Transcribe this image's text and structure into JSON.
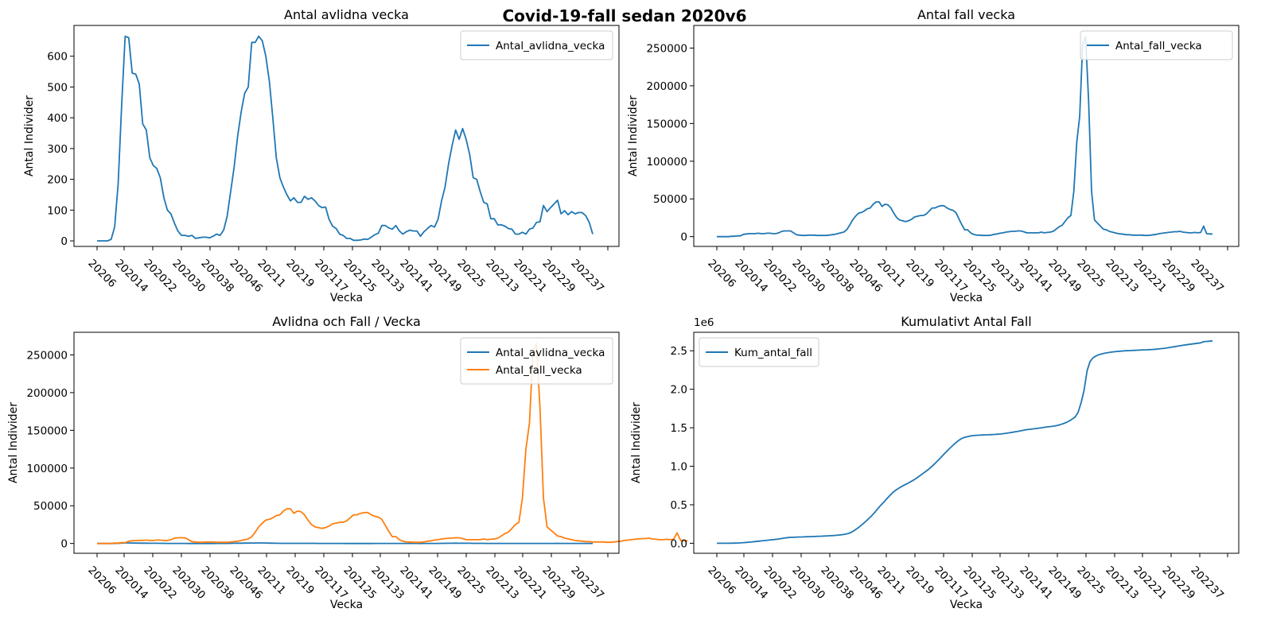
{
  "figure": {
    "suptitle": "Covid-19-fall sedan 2020v6"
  },
  "colors": {
    "series1": "#1f77b4",
    "series2": "#ff7f0e"
  },
  "chart_data": [
    {
      "type": "line",
      "title": "Antal avlidna vecka",
      "xlabel": "Vecka",
      "ylabel": "Antal Individer",
      "x_ticks": [
        "20206",
        "202014",
        "202022",
        "202030",
        "202038",
        "202046",
        "20211",
        "20219",
        "202117",
        "202125",
        "202133",
        "202141",
        "202149",
        "20225",
        "202213",
        "202221",
        "202229",
        "202237"
      ],
      "y_ticks": [
        "0",
        "100",
        "200",
        "300",
        "400",
        "500",
        "600"
      ],
      "y_tick_values": [
        0,
        100,
        200,
        300,
        400,
        500,
        600
      ],
      "ylim": [
        -18,
        700
      ],
      "legend": "top-right",
      "offset_text": "",
      "series": [
        {
          "name": "Antal_avlidna_vecka",
          "color": "#1f77b4",
          "values": [
            0,
            0,
            0,
            0,
            5,
            45,
            185,
            440,
            665,
            660,
            545,
            542,
            510,
            380,
            360,
            270,
            245,
            235,
            205,
            140,
            100,
            88,
            58,
            32,
            18,
            18,
            15,
            18,
            8,
            10,
            12,
            12,
            10,
            15,
            22,
            18,
            35,
            80,
            160,
            240,
            340,
            420,
            480,
            500,
            645,
            645,
            665,
            650,
            600,
            520,
            400,
            270,
            205,
            175,
            150,
            130,
            140,
            125,
            125,
            145,
            135,
            140,
            130,
            115,
            108,
            110,
            70,
            48,
            40,
            22,
            18,
            8,
            8,
            2,
            2,
            3,
            6,
            5,
            12,
            20,
            25,
            50,
            50,
            42,
            38,
            50,
            32,
            22,
            30,
            35,
            32,
            32,
            15,
            30,
            40,
            50,
            45,
            70,
            130,
            175,
            250,
            310,
            360,
            330,
            365,
            330,
            280,
            205,
            200,
            160,
            125,
            120,
            72,
            72,
            52,
            52,
            48,
            40,
            38,
            22,
            22,
            28,
            22,
            38,
            42,
            60,
            62,
            115,
            95,
            108,
            120,
            132,
            88,
            98,
            85,
            95,
            88,
            92,
            92,
            82,
            60,
            22
          ]
        }
      ]
    },
    {
      "type": "line",
      "title": "Antal fall vecka",
      "xlabel": "Vecka",
      "ylabel": "Antal Individer",
      "x_ticks": [
        "20206",
        "202014",
        "202022",
        "202030",
        "202038",
        "202046",
        "20211",
        "20219",
        "202117",
        "202125",
        "202133",
        "202141",
        "202149",
        "20225",
        "202213",
        "202221",
        "202229",
        "202237"
      ],
      "y_ticks": [
        "0",
        "50000",
        "100000",
        "150000",
        "200000",
        "250000"
      ],
      "y_tick_values": [
        0,
        50000,
        100000,
        150000,
        200000,
        250000
      ],
      "ylim": [
        -13000,
        280000
      ],
      "legend": "top-right",
      "offset_text": "",
      "series": [
        {
          "name": "Antal_fall_vecka",
          "color": "#1f77b4",
          "values": [
            0,
            0,
            0,
            0,
            0,
            500,
            500,
            1000,
            1000,
            3000,
            3500,
            4000,
            4000,
            4000,
            4500,
            4000,
            4000,
            4500,
            4500,
            4000,
            4000,
            5000,
            7000,
            7500,
            7500,
            7500,
            5000,
            2500,
            2000,
            1500,
            1500,
            2000,
            2000,
            2000,
            1500,
            1500,
            1500,
            1500,
            2000,
            2500,
            3000,
            4000,
            5000,
            6000,
            9000,
            15000,
            22000,
            27000,
            31000,
            32000,
            34000,
            37000,
            38000,
            43000,
            46000,
            46000,
            40000,
            43000,
            42000,
            38000,
            31000,
            25000,
            22000,
            21000,
            20000,
            21000,
            23000,
            26000,
            27000,
            28000,
            28000,
            30000,
            34000,
            38000,
            38000,
            40000,
            41000,
            41000,
            38000,
            36000,
            35000,
            32000,
            24000,
            16000,
            9000,
            9000,
            5000,
            3000,
            2000,
            2000,
            1500,
            1500,
            1500,
            2000,
            3000,
            3500,
            4500,
            5000,
            6000,
            6500,
            7000,
            7000,
            7500,
            7500,
            6500,
            5000,
            5000,
            5000,
            5000,
            5000,
            6000,
            5000,
            5500,
            6000,
            7000,
            10000,
            13000,
            15000,
            20000,
            25000,
            28000,
            60000,
            125000,
            160000,
            255000,
            265000,
            180000,
            60000,
            22000,
            18000,
            14000,
            10000,
            9000,
            7000,
            6000,
            5000,
            4000,
            3500,
            3000,
            2500,
            2500,
            2000,
            2000,
            2000,
            2000,
            1500,
            1500,
            2000,
            2500,
            3000,
            4000,
            4500,
            5000,
            5500,
            6000,
            6500,
            6500,
            7000,
            6000,
            5500,
            5000,
            5000,
            5500,
            5000,
            5500,
            14000,
            4000,
            3500,
            3500
          ]
        }
      ]
    },
    {
      "type": "line",
      "title": "Avlidna och Fall / Vecka",
      "xlabel": "Vecka",
      "ylabel": "Antal Individer",
      "x_ticks": [
        "20206",
        "202014",
        "202022",
        "202030",
        "202038",
        "202046",
        "20211",
        "20219",
        "202117",
        "202125",
        "202133",
        "202141",
        "202149",
        "20225",
        "202213",
        "202221",
        "202229",
        "202237"
      ],
      "y_ticks": [
        "0",
        "50000",
        "100000",
        "150000",
        "200000",
        "250000"
      ],
      "y_tick_values": [
        0,
        50000,
        100000,
        150000,
        200000,
        250000
      ],
      "ylim": [
        -13000,
        280000
      ],
      "legend": "top-right",
      "offset_text": "",
      "series": [
        {
          "name": "Antal_avlidna_vecka",
          "color": "#1f77b4",
          "values": [
            0,
            0,
            0,
            0,
            5,
            45,
            185,
            440,
            665,
            660,
            545,
            542,
            510,
            380,
            360,
            270,
            245,
            235,
            205,
            140,
            100,
            88,
            58,
            32,
            18,
            18,
            15,
            18,
            8,
            10,
            12,
            12,
            10,
            15,
            22,
            18,
            35,
            80,
            160,
            240,
            340,
            420,
            480,
            500,
            645,
            645,
            665,
            650,
            600,
            520,
            400,
            270,
            205,
            175,
            150,
            130,
            140,
            125,
            125,
            145,
            135,
            140,
            130,
            115,
            108,
            110,
            70,
            48,
            40,
            22,
            18,
            8,
            8,
            2,
            2,
            3,
            6,
            5,
            12,
            20,
            25,
            50,
            50,
            42,
            38,
            50,
            32,
            22,
            30,
            35,
            32,
            32,
            15,
            30,
            40,
            50,
            45,
            70,
            130,
            175,
            250,
            310,
            360,
            330,
            365,
            330,
            280,
            205,
            200,
            160,
            125,
            120,
            72,
            72,
            52,
            52,
            48,
            40,
            38,
            22,
            22,
            28,
            22,
            38,
            42,
            60,
            62,
            115,
            95,
            108,
            120,
            132,
            88,
            98,
            85,
            95,
            88,
            92,
            92,
            82,
            60,
            22
          ]
        },
        {
          "name": "Antal_fall_vecka",
          "color": "#ff7f0e",
          "values": [
            0,
            0,
            0,
            0,
            0,
            500,
            500,
            1000,
            1000,
            3000,
            3500,
            4000,
            4000,
            4000,
            4500,
            4000,
            4000,
            4500,
            4500,
            4000,
            4000,
            5000,
            7000,
            7500,
            7500,
            7500,
            5000,
            2500,
            2000,
            1500,
            1500,
            2000,
            2000,
            2000,
            1500,
            1500,
            1500,
            1500,
            2000,
            2500,
            3000,
            4000,
            5000,
            6000,
            9000,
            15000,
            22000,
            27000,
            31000,
            32000,
            34000,
            37000,
            38000,
            43000,
            46000,
            46000,
            40000,
            43000,
            42000,
            38000,
            31000,
            25000,
            22000,
            21000,
            20000,
            21000,
            23000,
            26000,
            27000,
            28000,
            28000,
            30000,
            34000,
            38000,
            38000,
            40000,
            41000,
            41000,
            38000,
            36000,
            35000,
            32000,
            24000,
            16000,
            9000,
            9000,
            5000,
            3000,
            2000,
            2000,
            1500,
            1500,
            1500,
            2000,
            3000,
            3500,
            4500,
            5000,
            6000,
            6500,
            7000,
            7000,
            7500,
            7500,
            6500,
            5000,
            5000,
            5000,
            5000,
            5000,
            6000,
            5000,
            5500,
            6000,
            7000,
            10000,
            13000,
            15000,
            20000,
            25000,
            28000,
            60000,
            125000,
            160000,
            255000,
            265000,
            180000,
            60000,
            22000,
            18000,
            14000,
            10000,
            9000,
            7000,
            6000,
            5000,
            4000,
            3500,
            3000,
            2500,
            2500,
            2000,
            2000,
            2000,
            2000,
            1500,
            1500,
            2000,
            2500,
            3000,
            4000,
            4500,
            5000,
            5500,
            6000,
            6500,
            6500,
            7000,
            6000,
            5500,
            5000,
            5000,
            5500,
            5000,
            5500,
            14000,
            4000,
            3500,
            3500
          ]
        }
      ]
    },
    {
      "type": "line",
      "title": "Kumulativt Antal Fall",
      "xlabel": "Vecka",
      "ylabel": "Antal Individer",
      "x_ticks": [
        "20206",
        "202014",
        "202022",
        "202030",
        "202038",
        "202046",
        "20211",
        "20219",
        "202117",
        "202125",
        "202133",
        "202141",
        "202149",
        "20225",
        "202213",
        "202221",
        "202229",
        "202237"
      ],
      "y_ticks": [
        "0.0",
        "0.5",
        "1.0",
        "1.5",
        "2.0",
        "2.5"
      ],
      "y_tick_values": [
        0,
        0.5,
        1.0,
        1.5,
        2.0,
        2.5
      ],
      "ylim": [
        -0.13,
        2.74
      ],
      "y_scale_label": "1e6",
      "legend": "top-left",
      "offset_text": "1e6",
      "series": [
        {
          "name": "Kum_antal_fall",
          "color": "#1f77b4",
          "values": [
            0,
            0,
            0,
            0,
            0,
            0.001,
            0.002,
            0.003,
            0.005,
            0.008,
            0.011,
            0.015,
            0.019,
            0.023,
            0.027,
            0.031,
            0.035,
            0.039,
            0.044,
            0.048,
            0.052,
            0.057,
            0.064,
            0.07,
            0.074,
            0.077,
            0.079,
            0.081,
            0.082,
            0.083,
            0.085,
            0.086,
            0.088,
            0.089,
            0.091,
            0.092,
            0.094,
            0.096,
            0.098,
            0.1,
            0.103,
            0.107,
            0.112,
            0.118,
            0.127,
            0.142,
            0.164,
            0.191,
            0.222,
            0.254,
            0.288,
            0.325,
            0.363,
            0.406,
            0.452,
            0.498,
            0.538,
            0.581,
            0.623,
            0.661,
            0.692,
            0.717,
            0.739,
            0.76,
            0.78,
            0.801,
            0.824,
            0.85,
            0.877,
            0.905,
            0.933,
            0.963,
            0.997,
            1.035,
            1.073,
            1.113,
            1.154,
            1.195,
            1.233,
            1.269,
            1.304,
            1.336,
            1.36,
            1.376,
            1.385,
            1.394,
            1.399,
            1.402,
            1.404,
            1.406,
            1.408,
            1.409,
            1.411,
            1.413,
            1.416,
            1.419,
            1.424,
            1.429,
            1.435,
            1.441,
            1.448,
            1.455,
            1.463,
            1.47,
            1.476,
            1.481,
            1.486,
            1.491,
            1.496,
            1.501,
            1.507,
            1.512,
            1.517,
            1.523,
            1.53,
            1.54,
            1.553,
            1.568,
            1.588,
            1.613,
            1.641,
            1.701,
            1.826,
            1.986,
            2.241,
            2.36,
            2.41,
            2.432,
            2.45,
            2.46,
            2.469,
            2.476,
            2.482,
            2.487,
            2.491,
            2.494,
            2.497,
            2.5,
            2.502,
            2.504,
            2.506,
            2.508,
            2.51,
            2.512,
            2.513,
            2.515,
            2.517,
            2.52,
            2.524,
            2.528,
            2.533,
            2.539,
            2.545,
            2.551,
            2.558,
            2.565,
            2.571,
            2.577,
            2.582,
            2.587,
            2.592,
            2.598,
            2.603,
            2.617,
            2.621,
            2.624,
            2.628
          ]
        }
      ]
    }
  ]
}
